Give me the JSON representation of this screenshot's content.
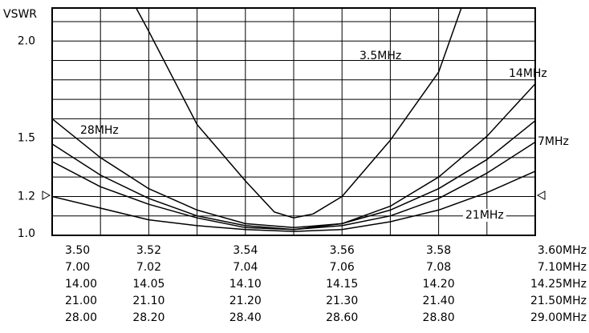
{
  "chart_data": {
    "type": "line",
    "y_label": "VSWR",
    "ylim": [
      1.0,
      2.17
    ],
    "yticks": [
      {
        "value": 1.0,
        "label": "1.0"
      },
      {
        "value": 1.2,
        "label": "1.2"
      },
      {
        "value": 1.5,
        "label": "1.5"
      },
      {
        "value": 2.0,
        "label": "2.0"
      }
    ],
    "ygrid": [
      1.1,
      1.2,
      1.3,
      1.4,
      1.5,
      1.6,
      1.7,
      1.8,
      1.9,
      2.0,
      2.1
    ],
    "xgrid": [
      3.51,
      3.52,
      3.53,
      3.54,
      3.55,
      3.56,
      3.57,
      3.58,
      3.59
    ],
    "grid": true,
    "x_axes": [
      {
        "xlim": [
          3.5,
          3.6
        ],
        "xticks": [
          {
            "value": 3.5,
            "label": "3.50"
          },
          3.52,
          3.54,
          3.56,
          3.58,
          {
            "value": 3.6,
            "label": "3.60MHz"
          }
        ]
      },
      {
        "xlim": [
          7.0,
          7.1
        ],
        "xticks": [
          {
            "value": 7.0,
            "label": "7.00"
          },
          7.02,
          7.04,
          7.06,
          7.08,
          {
            "value": 7.1,
            "label": "7.10MHz"
          }
        ]
      },
      {
        "xlim": [
          14.0,
          14.25
        ],
        "xticks": [
          {
            "value": 14.0,
            "label": "14.00"
          },
          14.05,
          {
            "value": 14.1,
            "label": "14.10"
          },
          14.15,
          {
            "value": 14.2,
            "label": "14.20"
          },
          {
            "value": 14.25,
            "label": "14.25MHz"
          }
        ]
      },
      {
        "xlim": [
          21.0,
          21.5
        ],
        "xticks": [
          {
            "value": 21.0,
            "label": "21.00"
          },
          {
            "value": 21.1,
            "label": "21.10"
          },
          {
            "value": 21.2,
            "label": "21.20"
          },
          {
            "value": 21.3,
            "label": "21.30"
          },
          {
            "value": 21.4,
            "label": "21.40"
          },
          {
            "value": 21.5,
            "label": "21.50MHz"
          }
        ]
      },
      {
        "xlim": [
          28.0,
          29.0
        ],
        "xticks": [
          {
            "value": 28.0,
            "label": "28.00"
          },
          {
            "value": 28.2,
            "label": "28.20"
          },
          {
            "value": 28.4,
            "label": "28.40"
          },
          {
            "value": 28.6,
            "label": "28.60"
          },
          {
            "value": 28.8,
            "label": "28.80"
          },
          {
            "value": 29.0,
            "label": "29.00MHz"
          }
        ]
      }
    ],
    "series": [
      {
        "name": "3.5MHz",
        "color": "#000000",
        "axis": 0,
        "x": [
          3.5174,
          3.52,
          3.53,
          3.54,
          3.546,
          3.55,
          3.554,
          3.56,
          3.57,
          3.58,
          3.5847
        ],
        "values": [
          2.17,
          2.05,
          1.57,
          1.28,
          1.12,
          1.09,
          1.11,
          1.2,
          1.49,
          1.84,
          2.17
        ]
      },
      {
        "name": "7MHz",
        "color": "#000000",
        "axis": 1,
        "x": [
          7.0,
          7.01,
          7.02,
          7.03,
          7.04,
          7.05,
          7.06,
          7.07,
          7.08,
          7.09,
          7.1
        ],
        "values": [
          1.38,
          1.25,
          1.16,
          1.09,
          1.04,
          1.03,
          1.05,
          1.1,
          1.19,
          1.32,
          1.48
        ]
      },
      {
        "name": "14MHz",
        "color": "#000000",
        "axis": 2,
        "x": [
          14.0,
          14.025,
          14.05,
          14.075,
          14.1,
          14.125,
          14.15,
          14.175,
          14.2,
          14.225,
          14.25
        ],
        "values": [
          1.47,
          1.31,
          1.19,
          1.1,
          1.05,
          1.03,
          1.06,
          1.15,
          1.3,
          1.51,
          1.78
        ]
      },
      {
        "name": "21MHz",
        "color": "#000000",
        "axis": 3,
        "x": [
          21.0,
          21.05,
          21.1,
          21.15,
          21.2,
          21.25,
          21.3,
          21.35,
          21.4,
          21.45,
          21.5
        ],
        "values": [
          1.2,
          1.14,
          1.08,
          1.05,
          1.03,
          1.02,
          1.03,
          1.07,
          1.13,
          1.22,
          1.33
        ]
      },
      {
        "name": "28MHz",
        "color": "#000000",
        "axis": 4,
        "x": [
          28.0,
          28.1,
          28.2,
          28.3,
          28.4,
          28.5,
          28.6,
          28.7,
          28.8,
          28.9,
          29.0
        ],
        "values": [
          1.6,
          1.4,
          1.24,
          1.13,
          1.06,
          1.04,
          1.06,
          1.13,
          1.24,
          1.39,
          1.59
        ]
      }
    ]
  }
}
